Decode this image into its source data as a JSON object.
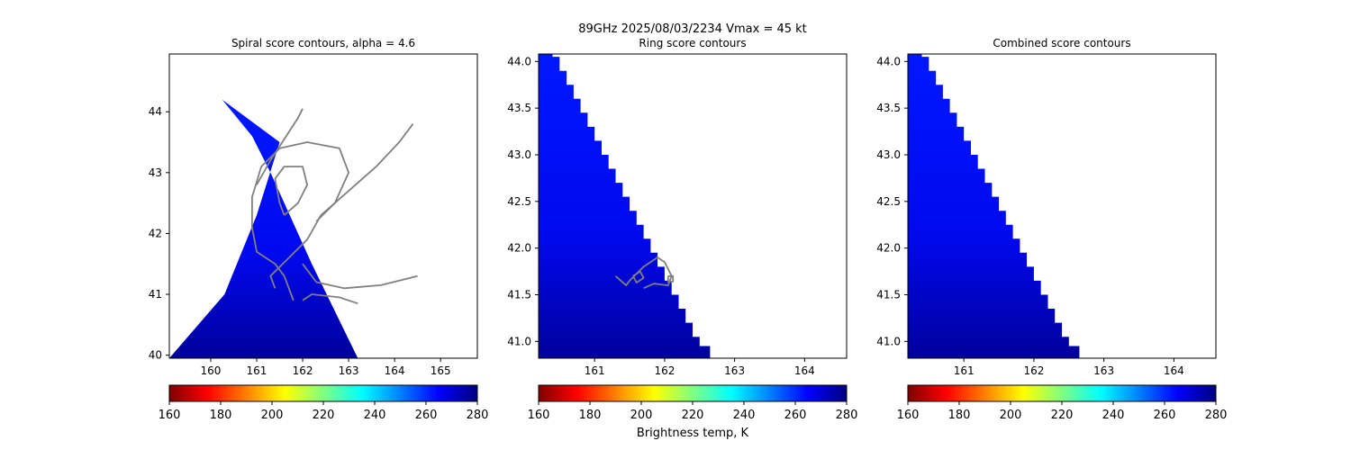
{
  "suptitle": "89GHz  2025/08/03/2234    Vmax = 45 kt",
  "colorbar_label": "Brightness temp, K",
  "colormap": [
    "#7f0000",
    "#ff0000",
    "#ff8000",
    "#ffff00",
    "#80ff80",
    "#00ffff",
    "#0080ff",
    "#0000ff",
    "#00007f"
  ],
  "chart_data": [
    {
      "type": "heatmap",
      "title": "Spiral score contours, alpha =  4.6",
      "xlabel": "",
      "ylabel": "",
      "xlim": [
        159.1,
        165.8
      ],
      "ylim": [
        39.95,
        44.95
      ],
      "xticks": [
        160,
        161,
        162,
        163,
        164,
        165
      ],
      "yticks": [
        40,
        41,
        42,
        43,
        44
      ],
      "swath": [
        [
          159.1,
          39.95
        ],
        [
          160.3,
          41.0
        ],
        [
          161.0,
          42.3
        ],
        [
          161.5,
          43.5
        ],
        [
          160.25,
          44.2
        ],
        [
          160.9,
          43.6
        ],
        [
          161.3,
          43.0
        ],
        [
          162.2,
          41.5
        ],
        [
          163.2,
          39.95
        ]
      ],
      "contour_color": "#808080",
      "contours": [
        [
          [
            161.0,
            42.8
          ],
          [
            161.3,
            43.2
          ],
          [
            161.6,
            43.55
          ],
          [
            161.9,
            43.9
          ],
          [
            162.0,
            44.05
          ]
        ],
        [
          [
            161.8,
            40.9
          ],
          [
            161.6,
            41.3
          ],
          [
            161.4,
            41.5
          ],
          [
            161.0,
            41.7
          ],
          [
            160.9,
            42.1
          ],
          [
            160.9,
            42.6
          ],
          [
            161.1,
            43.1
          ],
          [
            161.5,
            43.4
          ],
          [
            162.1,
            43.5
          ],
          [
            162.8,
            43.4
          ],
          [
            163.0,
            43.0
          ],
          [
            162.7,
            42.5
          ],
          [
            162.3,
            42.2
          ]
        ],
        [
          [
            161.6,
            42.3
          ],
          [
            161.9,
            42.5
          ],
          [
            162.1,
            42.8
          ],
          [
            162.0,
            43.1
          ],
          [
            161.6,
            43.1
          ],
          [
            161.4,
            42.9
          ],
          [
            161.5,
            42.5
          ],
          [
            161.6,
            42.3
          ]
        ],
        [
          [
            161.4,
            41.1
          ],
          [
            161.3,
            41.3
          ],
          [
            161.7,
            41.6
          ],
          [
            162.1,
            41.9
          ],
          [
            162.4,
            42.3
          ],
          [
            163.0,
            42.7
          ],
          [
            163.6,
            43.1
          ],
          [
            164.1,
            43.5
          ],
          [
            164.4,
            43.8
          ]
        ],
        [
          [
            162.0,
            41.5
          ],
          [
            162.3,
            41.2
          ],
          [
            162.9,
            41.1
          ],
          [
            163.7,
            41.15
          ],
          [
            164.5,
            41.3
          ]
        ],
        [
          [
            162.0,
            40.9
          ],
          [
            162.2,
            41.0
          ],
          [
            162.8,
            40.95
          ],
          [
            163.2,
            40.85
          ]
        ]
      ],
      "colorbar_ticks": [
        160,
        180,
        200,
        220,
        240,
        260,
        280
      ]
    },
    {
      "type": "heatmap",
      "title": "Ring score contours",
      "xlabel": "",
      "ylabel": "",
      "xlim": [
        160.2,
        164.6
      ],
      "ylim": [
        40.82,
        44.08
      ],
      "xticks": [
        161,
        162,
        163,
        164
      ],
      "yticks": [
        41.0,
        41.5,
        42.0,
        42.5,
        43.0,
        43.5,
        44.0
      ],
      "swath_edge": [
        [
          160.2,
          44.1
        ],
        [
          160.4,
          44.05
        ],
        [
          160.5,
          43.9
        ],
        [
          160.6,
          43.75
        ],
        [
          160.7,
          43.6
        ],
        [
          160.8,
          43.45
        ],
        [
          160.9,
          43.3
        ],
        [
          161.0,
          43.15
        ],
        [
          161.1,
          43.0
        ],
        [
          161.2,
          42.85
        ],
        [
          161.3,
          42.7
        ],
        [
          161.4,
          42.55
        ],
        [
          161.5,
          42.4
        ],
        [
          161.6,
          42.25
        ],
        [
          161.7,
          42.1
        ],
        [
          161.8,
          41.95
        ],
        [
          161.9,
          41.8
        ],
        [
          162.0,
          41.65
        ],
        [
          162.1,
          41.5
        ],
        [
          162.2,
          41.35
        ],
        [
          162.3,
          41.2
        ],
        [
          162.4,
          41.05
        ],
        [
          162.5,
          40.95
        ],
        [
          162.65,
          40.82
        ]
      ],
      "contour_color": "#808080",
      "contours": [
        [
          [
            161.3,
            41.7
          ],
          [
            161.45,
            41.6
          ],
          [
            161.5,
            41.65
          ],
          [
            161.7,
            41.8
          ],
          [
            161.9,
            41.9
          ],
          [
            162.0,
            41.85
          ],
          [
            162.1,
            41.7
          ],
          [
            162.05,
            41.6
          ],
          [
            161.85,
            41.62
          ],
          [
            161.7,
            41.57
          ]
        ],
        [
          [
            161.55,
            41.7
          ],
          [
            161.65,
            41.75
          ],
          [
            161.7,
            41.68
          ],
          [
            161.6,
            41.63
          ],
          [
            161.55,
            41.7
          ]
        ],
        [
          [
            162.05,
            41.7
          ],
          [
            162.12,
            41.7
          ],
          [
            162.12,
            41.64
          ],
          [
            162.05,
            41.64
          ],
          [
            162.05,
            41.7
          ]
        ]
      ],
      "colorbar_ticks": [
        160,
        180,
        200,
        220,
        240,
        260,
        280
      ]
    },
    {
      "type": "heatmap",
      "title": "Combined score contours",
      "xlabel": "",
      "ylabel": "",
      "xlim": [
        160.2,
        164.6
      ],
      "ylim": [
        40.82,
        44.08
      ],
      "xticks": [
        161,
        162,
        163,
        164
      ],
      "yticks": [
        41.0,
        41.5,
        42.0,
        42.5,
        43.0,
        43.5,
        44.0
      ],
      "swath_edge": [
        [
          160.2,
          44.1
        ],
        [
          160.4,
          44.05
        ],
        [
          160.5,
          43.9
        ],
        [
          160.6,
          43.75
        ],
        [
          160.7,
          43.6
        ],
        [
          160.8,
          43.45
        ],
        [
          160.9,
          43.3
        ],
        [
          161.0,
          43.15
        ],
        [
          161.1,
          43.0
        ],
        [
          161.2,
          42.85
        ],
        [
          161.3,
          42.7
        ],
        [
          161.4,
          42.55
        ],
        [
          161.5,
          42.4
        ],
        [
          161.6,
          42.25
        ],
        [
          161.7,
          42.1
        ],
        [
          161.8,
          41.95
        ],
        [
          161.9,
          41.8
        ],
        [
          162.0,
          41.65
        ],
        [
          162.1,
          41.5
        ],
        [
          162.2,
          41.35
        ],
        [
          162.3,
          41.2
        ],
        [
          162.4,
          41.05
        ],
        [
          162.5,
          40.95
        ],
        [
          162.65,
          40.82
        ]
      ],
      "contour_color": "#808080",
      "contours": [],
      "colorbar_ticks": [
        160,
        180,
        200,
        220,
        240,
        260,
        280
      ]
    }
  ]
}
